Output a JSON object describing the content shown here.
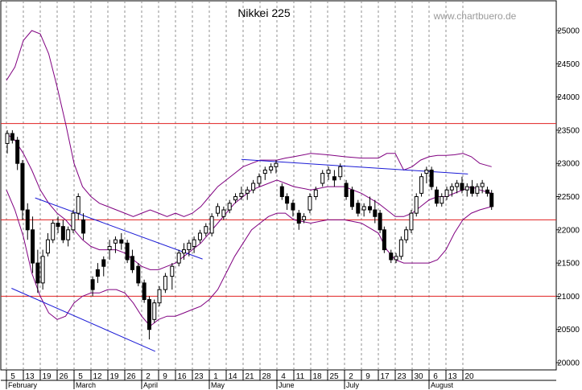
{
  "title": "Nikkei 225",
  "watermark": "www.chartbuero.de",
  "colors": {
    "background": "#ffffff",
    "candle": "#000000",
    "bollinger": "#800080",
    "trendline": "#1a1ad6",
    "support_resistance": "#e02020",
    "grid": "#909090"
  },
  "chart_data": {
    "type": "candlestick",
    "title": "Nikkei 225",
    "ylim": [
      19900,
      25450
    ],
    "y_ticks": [
      20000,
      20500,
      21000,
      21500,
      22000,
      22500,
      23000,
      23500,
      24000,
      24500,
      25000
    ],
    "y_tick_labels": [
      "20000",
      "20500",
      "21000",
      "21500",
      "22000",
      "22500",
      "23000",
      "23500",
      "24000",
      "24500",
      "25000"
    ],
    "day_labels": [
      "5",
      "13",
      "19",
      "26",
      "5",
      "12",
      "19",
      "26",
      "2",
      "9",
      "16",
      "23",
      "1",
      "14",
      "21",
      "28",
      "4",
      "11",
      "18",
      "25",
      "2",
      "9",
      "17",
      "23",
      "30",
      "6",
      "13",
      "20"
    ],
    "month_labels": [
      {
        "label": "February",
        "index": 0
      },
      {
        "label": "March",
        "index": 4
      },
      {
        "label": "April",
        "index": 8
      },
      {
        "label": "May",
        "index": 12
      },
      {
        "label": "June",
        "index": 16
      },
      {
        "label": "July",
        "index": 20
      },
      {
        "label": "August",
        "index": 25
      }
    ],
    "horizontal_lines": [
      23600,
      22150,
      21000
    ],
    "trendlines": [
      {
        "from": [
          0.3,
          21120
        ],
        "to": [
          8.8,
          20170
        ]
      },
      {
        "from": [
          1.7,
          22480
        ],
        "to": [
          11.6,
          21560
        ]
      },
      {
        "from": [
          13.9,
          23060
        ],
        "to": [
          27.3,
          22840
        ]
      }
    ],
    "candles": [
      [
        0.05,
        23300,
        23500,
        23150,
        23450
      ],
      [
        0.35,
        23450,
        23500,
        23300,
        23350
      ],
      [
        0.65,
        23350,
        23400,
        22900,
        23000
      ],
      [
        0.95,
        23000,
        23050,
        22150,
        22300
      ],
      [
        1.25,
        22300,
        22400,
        21850,
        22000
      ],
      [
        1.55,
        22000,
        22200,
        21350,
        21500
      ],
      [
        1.85,
        21500,
        21700,
        21050,
        21200
      ],
      [
        2.15,
        21200,
        21700,
        21100,
        21600
      ],
      [
        2.45,
        21650,
        21950,
        21600,
        21850
      ],
      [
        2.75,
        21850,
        22150,
        21800,
        22100
      ],
      [
        3.05,
        22100,
        22200,
        21950,
        22050
      ],
      [
        3.35,
        22050,
        22150,
        21800,
        21850
      ],
      [
        3.65,
        21850,
        22050,
        21750,
        22000
      ],
      [
        3.95,
        22000,
        22300,
        21950,
        22250
      ],
      [
        4.25,
        22250,
        22550,
        22150,
        22500
      ],
      [
        4.55,
        22150,
        22250,
        21850,
        21950
      ],
      [
        5.1,
        21250,
        21300,
        21000,
        21100
      ],
      [
        5.4,
        21400,
        21500,
        21200,
        21300
      ],
      [
        5.75,
        21550,
        21600,
        21300,
        21450
      ],
      [
        6.1,
        21700,
        21850,
        21550,
        21750
      ],
      [
        6.45,
        21800,
        21900,
        21650,
        21850
      ],
      [
        6.8,
        21850,
        21950,
        21700,
        21800
      ],
      [
        7.15,
        21800,
        21850,
        21500,
        21550
      ],
      [
        7.45,
        21600,
        21700,
        21350,
        21400
      ],
      [
        7.8,
        21450,
        21500,
        21150,
        21200
      ],
      [
        8.15,
        21200,
        21250,
        20900,
        20950
      ],
      [
        8.45,
        20950,
        21000,
        20350,
        20500
      ],
      [
        8.75,
        20650,
        20950,
        20600,
        20900
      ],
      [
        9.05,
        20900,
        21150,
        20850,
        21100
      ],
      [
        9.4,
        21100,
        21350,
        21050,
        21300
      ],
      [
        9.8,
        21300,
        21500,
        21100,
        21450
      ],
      [
        10.2,
        21500,
        21700,
        21450,
        21650
      ],
      [
        10.5,
        21650,
        21800,
        21550,
        21700
      ],
      [
        10.8,
        21700,
        21850,
        21600,
        21800
      ],
      [
        11.1,
        21750,
        21900,
        21650,
        21850
      ],
      [
        11.45,
        21850,
        22000,
        21800,
        21950
      ],
      [
        11.8,
        21950,
        22100,
        21900,
        22050
      ],
      [
        12.15,
        21950,
        22250,
        21900,
        22200
      ],
      [
        12.5,
        22250,
        22400,
        22200,
        22350
      ],
      [
        12.85,
        22200,
        22350,
        22150,
        22300
      ],
      [
        13.2,
        22300,
        22450,
        22250,
        22400
      ],
      [
        13.55,
        22450,
        22550,
        22400,
        22500
      ],
      [
        13.9,
        22500,
        22650,
        22450,
        22550
      ],
      [
        14.25,
        22550,
        22650,
        22450,
        22600
      ],
      [
        14.6,
        22600,
        22750,
        22550,
        22700
      ],
      [
        14.95,
        22700,
        22850,
        22650,
        22800
      ],
      [
        15.3,
        22850,
        22950,
        22750,
        22900
      ],
      [
        15.65,
        22900,
        23000,
        22850,
        22950
      ],
      [
        15.95,
        22950,
        23050,
        22850,
        23000
      ],
      [
        16.3,
        22650,
        22700,
        22450,
        22500
      ],
      [
        16.6,
        22500,
        22550,
        22300,
        22400
      ],
      [
        16.95,
        22400,
        22450,
        22200,
        22300
      ],
      [
        17.3,
        22250,
        22300,
        22000,
        22100
      ],
      [
        17.6,
        22150,
        22250,
        22100,
        22200
      ],
      [
        17.95,
        22300,
        22550,
        22250,
        22500
      ],
      [
        18.3,
        22500,
        22650,
        22450,
        22600
      ],
      [
        18.7,
        22700,
        22900,
        22650,
        22850
      ],
      [
        19.05,
        22850,
        22950,
        22750,
        22900
      ],
      [
        19.4,
        22800,
        22900,
        22650,
        22750
      ],
      [
        19.75,
        22800,
        23000,
        22750,
        22950
      ],
      [
        20.1,
        22700,
        22750,
        22450,
        22500
      ],
      [
        20.45,
        22600,
        22650,
        22300,
        22350
      ],
      [
        20.8,
        22400,
        22450,
        22200,
        22250
      ],
      [
        21.15,
        22300,
        22400,
        22200,
        22350
      ],
      [
        21.5,
        22350,
        22500,
        22250,
        22300
      ],
      [
        21.8,
        22300,
        22450,
        22100,
        22200
      ],
      [
        22.1,
        22250,
        22300,
        21950,
        22000
      ],
      [
        22.35,
        22000,
        22050,
        21650,
        21700
      ],
      [
        22.75,
        21650,
        21700,
        21500,
        21550
      ],
      [
        23.05,
        21550,
        21650,
        21500,
        21600
      ],
      [
        23.35,
        21600,
        21900,
        21550,
        21850
      ],
      [
        23.65,
        21850,
        22050,
        21800,
        22000
      ],
      [
        23.95,
        22000,
        22300,
        21950,
        22250
      ],
      [
        24.25,
        22250,
        22550,
        22200,
        22500
      ],
      [
        24.55,
        22550,
        22850,
        22500,
        22800
      ],
      [
        24.85,
        22850,
        22950,
        22700,
        22900
      ],
      [
        25.15,
        22900,
        22950,
        22600,
        22650
      ],
      [
        25.45,
        22600,
        22650,
        22350,
        22400
      ],
      [
        25.75,
        22400,
        22550,
        22350,
        22500
      ],
      [
        26.05,
        22500,
        22650,
        22450,
        22600
      ],
      [
        26.35,
        22600,
        22700,
        22500,
        22650
      ],
      [
        26.65,
        22650,
        22750,
        22550,
        22700
      ],
      [
        26.95,
        22700,
        22800,
        22550,
        22600
      ],
      [
        27.25,
        22600,
        22700,
        22500,
        22650
      ],
      [
        27.55,
        22650,
        22750,
        22500,
        22550
      ],
      [
        27.85,
        22550,
        22700,
        22500,
        22650
      ],
      [
        28.15,
        22650,
        22750,
        22550,
        22700
      ],
      [
        28.45,
        22600,
        22650,
        22500,
        22550
      ],
      [
        28.7,
        22550,
        22600,
        22300,
        22350
      ]
    ],
    "bollinger_upper": [
      [
        0,
        24250
      ],
      [
        0.5,
        24450
      ],
      [
        1,
        24850
      ],
      [
        1.5,
        25000
      ],
      [
        2,
        24950
      ],
      [
        2.5,
        24650
      ],
      [
        3,
        24150
      ],
      [
        3.5,
        23600
      ],
      [
        4,
        23000
      ],
      [
        4.5,
        22650
      ],
      [
        5,
        22500
      ],
      [
        5.5,
        22400
      ],
      [
        6,
        22350
      ],
      [
        6.5,
        22300
      ],
      [
        7,
        22250
      ],
      [
        7.5,
        22200
      ],
      [
        8,
        22250
      ],
      [
        8.5,
        22300
      ],
      [
        9,
        22250
      ],
      [
        9.5,
        22200
      ],
      [
        10,
        22250
      ],
      [
        10.5,
        22200
      ],
      [
        11,
        22250
      ],
      [
        11.5,
        22350
      ],
      [
        12,
        22500
      ],
      [
        12.5,
        22650
      ],
      [
        13,
        22750
      ],
      [
        13.5,
        22850
      ],
      [
        14,
        22950
      ],
      [
        14.5,
        23000
      ],
      [
        15,
        23050
      ],
      [
        15.5,
        23050
      ],
      [
        16,
        23050
      ],
      [
        16.5,
        23080
      ],
      [
        17,
        23100
      ],
      [
        18,
        23150
      ],
      [
        19,
        23130
      ],
      [
        20,
        23100
      ],
      [
        21,
        23080
      ],
      [
        22,
        23080
      ],
      [
        22.5,
        23150
      ],
      [
        23,
        23150
      ],
      [
        23.5,
        22900
      ],
      [
        24,
        22950
      ],
      [
        24.5,
        23050
      ],
      [
        25,
        23100
      ],
      [
        25.5,
        23120
      ],
      [
        26,
        23120
      ],
      [
        26.5,
        23130
      ],
      [
        27,
        23150
      ],
      [
        27.5,
        23100
      ],
      [
        28,
        23000
      ],
      [
        28.7,
        22950
      ]
    ],
    "bollinger_mid": [
      [
        0,
        23450
      ],
      [
        0.5,
        23350
      ],
      [
        1,
        23150
      ],
      [
        1.5,
        22900
      ],
      [
        2,
        22600
      ],
      [
        2.5,
        22400
      ],
      [
        3,
        22250
      ],
      [
        3.5,
        22150
      ],
      [
        4,
        22000
      ],
      [
        4.5,
        21850
      ],
      [
        5,
        21750
      ],
      [
        5.5,
        21700
      ],
      [
        6,
        21700
      ],
      [
        6.5,
        21700
      ],
      [
        7,
        21650
      ],
      [
        7.5,
        21550
      ],
      [
        8,
        21450
      ],
      [
        8.5,
        21400
      ],
      [
        9,
        21400
      ],
      [
        9.5,
        21450
      ],
      [
        10,
        21500
      ],
      [
        10.5,
        21600
      ],
      [
        11,
        21700
      ],
      [
        11.5,
        21800
      ],
      [
        12,
        21950
      ],
      [
        12.5,
        22100
      ],
      [
        13,
        22250
      ],
      [
        13.5,
        22400
      ],
      [
        14,
        22500
      ],
      [
        14.5,
        22600
      ],
      [
        15,
        22650
      ],
      [
        15.5,
        22700
      ],
      [
        16,
        22750
      ],
      [
        16.5,
        22700
      ],
      [
        17,
        22650
      ],
      [
        18,
        22600
      ],
      [
        19,
        22650
      ],
      [
        20,
        22650
      ],
      [
        21,
        22550
      ],
      [
        22,
        22400
      ],
      [
        22.5,
        22300
      ],
      [
        23,
        22200
      ],
      [
        23.5,
        22200
      ],
      [
        24,
        22250
      ],
      [
        24.5,
        22350
      ],
      [
        25,
        22450
      ],
      [
        25.5,
        22500
      ],
      [
        26,
        22500
      ],
      [
        26.5,
        22550
      ],
      [
        27,
        22600
      ],
      [
        27.5,
        22650
      ],
      [
        28,
        22600
      ],
      [
        28.7,
        22550
      ]
    ],
    "bollinger_lower": [
      [
        0,
        22600
      ],
      [
        0.5,
        22300
      ],
      [
        1,
        21900
      ],
      [
        1.5,
        21350
      ],
      [
        2,
        21000
      ],
      [
        2.5,
        20750
      ],
      [
        3,
        20650
      ],
      [
        3.5,
        20700
      ],
      [
        4,
        20900
      ],
      [
        4.5,
        21000
      ],
      [
        5,
        21050
      ],
      [
        5.5,
        21050
      ],
      [
        6,
        21100
      ],
      [
        6.5,
        21100
      ],
      [
        7,
        21050
      ],
      [
        7.5,
        20900
      ],
      [
        8,
        20700
      ],
      [
        8.5,
        20550
      ],
      [
        9,
        20650
      ],
      [
        9.5,
        20700
      ],
      [
        10,
        20700
      ],
      [
        10.5,
        20750
      ],
      [
        11,
        20800
      ],
      [
        11.5,
        20850
      ],
      [
        12,
        20950
      ],
      [
        12.5,
        21100
      ],
      [
        13,
        21350
      ],
      [
        13.5,
        21600
      ],
      [
        14,
        21800
      ],
      [
        14.5,
        22000
      ],
      [
        15,
        22100
      ],
      [
        15.5,
        22200
      ],
      [
        16,
        22250
      ],
      [
        16.5,
        22250
      ],
      [
        17,
        22150
      ],
      [
        18,
        22100
      ],
      [
        19,
        22150
      ],
      [
        20,
        22150
      ],
      [
        21,
        22100
      ],
      [
        22,
        21950
      ],
      [
        22.5,
        21700
      ],
      [
        23,
        21550
      ],
      [
        23.5,
        21500
      ],
      [
        24,
        21500
      ],
      [
        24.5,
        21500
      ],
      [
        25,
        21500
      ],
      [
        25.5,
        21550
      ],
      [
        26,
        21700
      ],
      [
        26.5,
        21950
      ],
      [
        27,
        22150
      ],
      [
        27.5,
        22250
      ],
      [
        28,
        22300
      ],
      [
        28.7,
        22350
      ]
    ]
  }
}
